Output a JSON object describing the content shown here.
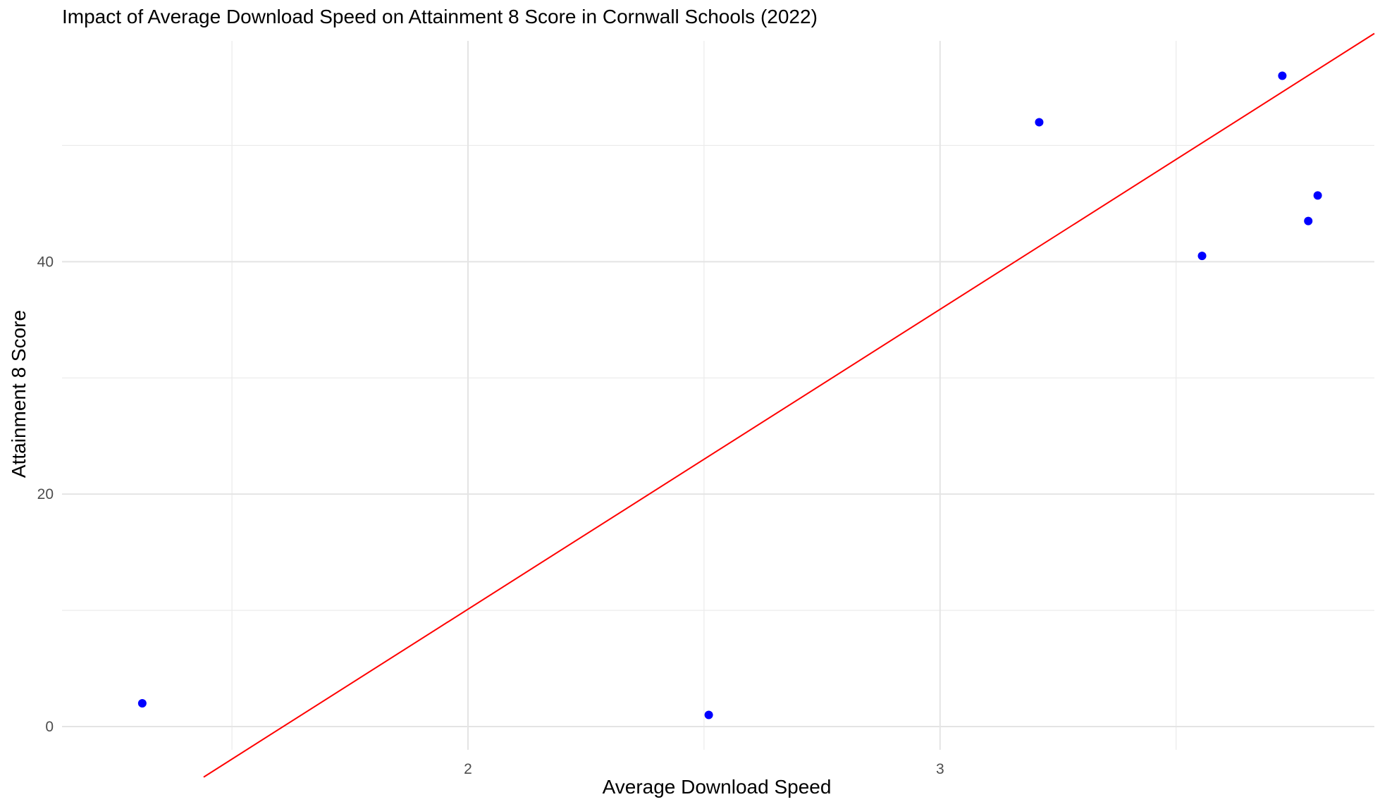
{
  "chart_data": {
    "type": "scatter",
    "title": "Impact of Average Download Speed on Attainment 8 Score in Cornwall Schools (2022)",
    "xlabel": "Average Download Speed",
    "ylabel": "Attainment 8 Score",
    "xlim": [
      1.14,
      3.92
    ],
    "ylim": [
      -2,
      59
    ],
    "x_major_ticks": [
      2,
      3
    ],
    "x_tick_labels": [
      "2",
      "3"
    ],
    "x_minor_ticks": [
      1.5,
      2.5,
      3.5
    ],
    "y_major_ticks": [
      0,
      20,
      40
    ],
    "y_tick_labels": [
      "0",
      "20",
      "40"
    ],
    "y_minor_ticks": [
      10,
      30,
      50
    ],
    "grid": true,
    "series": [
      {
        "points": [
          {
            "x": 1.31,
            "y": 2.0
          },
          {
            "x": 2.51,
            "y": 1.0
          },
          {
            "x": 3.21,
            "y": 52.0
          },
          {
            "x": 3.555,
            "y": 40.5
          },
          {
            "x": 3.725,
            "y": 56.0
          },
          {
            "x": 3.78,
            "y": 43.5
          },
          {
            "x": 3.8,
            "y": 45.7
          }
        ],
        "color": "#0000ff"
      }
    ],
    "trendline": {
      "color": "#ff0000",
      "x_start": 1.44,
      "x_end": 3.92,
      "slope": 25.8,
      "intercept": -41.5
    }
  }
}
